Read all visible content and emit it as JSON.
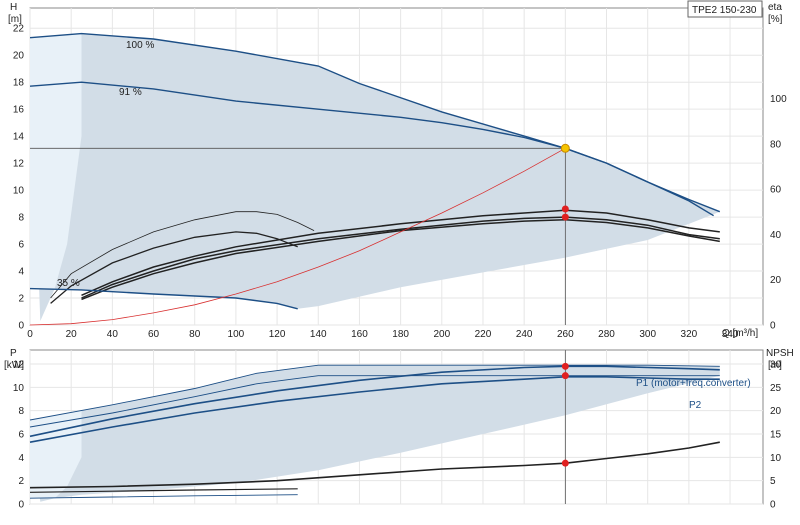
{
  "model_tag": "TPE2 150-230",
  "chart_data": [
    {
      "type": "line",
      "name": "head-efficiency",
      "left_axis": {
        "label": "H",
        "unit": "[m]",
        "ticks": [
          0,
          2,
          4,
          6,
          8,
          10,
          12,
          14,
          16,
          18,
          20,
          22
        ],
        "range": [
          0,
          23.5
        ]
      },
      "right_axis": {
        "label": "eta",
        "unit": "[%]",
        "ticks": [
          0,
          20,
          40,
          60,
          80,
          100
        ],
        "range": [
          0,
          140
        ]
      },
      "x_axis": {
        "label": "Q [m³/h]",
        "ticks": [
          0,
          20,
          40,
          60,
          80,
          100,
          120,
          140,
          160,
          180,
          200,
          220,
          240,
          260,
          280,
          300,
          320,
          340
        ],
        "range": [
          0,
          356
        ]
      },
      "series": [
        {
          "name": "100 %",
          "color": "#1d4f86",
          "points": [
            [
              0,
              21.3
            ],
            [
              25,
              21.6
            ],
            [
              60,
              21.2
            ],
            [
              100,
              20.3
            ],
            [
              140,
              19.2
            ],
            [
              160,
              17.9
            ],
            [
              200,
              15.8
            ],
            [
              240,
              14.0
            ],
            [
              260,
              13.1
            ],
            [
              280,
              12.0
            ],
            [
              300,
              10.6
            ],
            [
              320,
              9.3
            ],
            [
              335,
              8.4
            ]
          ]
        },
        {
          "name": "91 %",
          "color": "#1d4f86",
          "points": [
            [
              0,
              17.7
            ],
            [
              25,
              18.0
            ],
            [
              60,
              17.5
            ],
            [
              100,
              16.6
            ],
            [
              140,
              16.0
            ],
            [
              180,
              15.4
            ],
            [
              200,
              15.0
            ],
            [
              220,
              14.5
            ],
            [
              240,
              13.9
            ],
            [
              260,
              13.1
            ],
            [
              280,
              12.0
            ],
            [
              300,
              10.6
            ],
            [
              320,
              9.2
            ],
            [
              332,
              8.1
            ]
          ]
        },
        {
          "name": "35 %",
          "color": "#1d4f86",
          "points": [
            [
              0,
              2.7
            ],
            [
              25,
              2.6
            ],
            [
              60,
              2.3
            ],
            [
              100,
              2.0
            ],
            [
              120,
              1.6
            ],
            [
              130,
              1.2
            ]
          ]
        },
        {
          "name": "",
          "color": "#d83030",
          "points": [
            [
              0,
              0
            ],
            [
              20,
              0.1
            ],
            [
              40,
              0.4
            ],
            [
              60,
              0.9
            ],
            [
              80,
              1.5
            ],
            [
              100,
              2.3
            ],
            [
              120,
              3.2
            ],
            [
              140,
              4.3
            ],
            [
              160,
              5.5
            ],
            [
              180,
              6.9
            ],
            [
              200,
              8.3
            ],
            [
              220,
              9.8
            ],
            [
              240,
              11.4
            ],
            [
              260,
              13.1
            ]
          ]
        }
      ],
      "efficiency_curves": [
        {
          "color": "#222",
          "width": 0.8,
          "points": [
            [
              10,
              2.0
            ],
            [
              20,
              3.8
            ],
            [
              40,
              5.6
            ],
            [
              60,
              6.9
            ],
            [
              80,
              7.8
            ],
            [
              100,
              8.4
            ],
            [
              110,
              8.4
            ],
            [
              120,
              8.2
            ],
            [
              130,
              7.6
            ],
            [
              138,
              7.0
            ]
          ]
        },
        {
          "color": "#222",
          "width": 1.3,
          "points": [
            [
              10,
              1.6
            ],
            [
              20,
              2.9
            ],
            [
              40,
              4.6
            ],
            [
              60,
              5.7
            ],
            [
              80,
              6.5
            ],
            [
              100,
              6.9
            ],
            [
              110,
              6.8
            ],
            [
              120,
              6.4
            ],
            [
              130,
              5.8
            ]
          ]
        },
        {
          "color": "#222",
          "width": 1.5,
          "points": [
            [
              25,
              2.2
            ],
            [
              40,
              3.2
            ],
            [
              60,
              4.3
            ],
            [
              80,
              5.1
            ],
            [
              100,
              5.8
            ],
            [
              140,
              6.8
            ],
            [
              180,
              7.5
            ],
            [
              220,
              8.1
            ],
            [
              240,
              8.3
            ],
            [
              260,
              8.5
            ],
            [
              280,
              8.3
            ],
            [
              300,
              7.8
            ],
            [
              320,
              7.2
            ],
            [
              335,
              6.9
            ]
          ]
        },
        {
          "color": "#222",
          "width": 1.5,
          "points": [
            [
              25,
              2.0
            ],
            [
              40,
              3.0
            ],
            [
              60,
              4.0
            ],
            [
              80,
              4.9
            ],
            [
              100,
              5.5
            ],
            [
              140,
              6.4
            ],
            [
              180,
              7.1
            ],
            [
              220,
              7.7
            ],
            [
              240,
              7.9
            ],
            [
              260,
              8.0
            ],
            [
              280,
              7.8
            ],
            [
              300,
              7.4
            ],
            [
              320,
              6.7
            ],
            [
              335,
              6.4
            ]
          ]
        },
        {
          "color": "#222",
          "width": 1.5,
          "points": [
            [
              25,
              1.9
            ],
            [
              40,
              2.8
            ],
            [
              60,
              3.8
            ],
            [
              80,
              4.6
            ],
            [
              100,
              5.3
            ],
            [
              140,
              6.2
            ],
            [
              180,
              7.0
            ],
            [
              220,
              7.5
            ],
            [
              240,
              7.7
            ],
            [
              260,
              7.8
            ],
            [
              280,
              7.6
            ],
            [
              300,
              7.2
            ],
            [
              320,
              6.6
            ],
            [
              335,
              6.2
            ]
          ]
        }
      ],
      "operating_point": {
        "q": 260,
        "h": 13.1
      },
      "eta_points": [
        8.6,
        8.0
      ]
    },
    {
      "type": "line",
      "name": "power-npsh",
      "left_axis": {
        "label": "P",
        "unit": "[kW]",
        "ticks": [
          0,
          2,
          4,
          6,
          8,
          10,
          12
        ],
        "range": [
          0,
          13.2
        ]
      },
      "right_axis": {
        "label": "NPSH",
        "unit": "[m]",
        "ticks": [
          0,
          5,
          10,
          15,
          20,
          25,
          30
        ],
        "range": [
          0,
          33
        ]
      },
      "series": [
        {
          "name": "P1 (motor+freq.converter)",
          "color": "#1d4f86",
          "points": [
            [
              0,
              5.8
            ],
            [
              40,
              7.3
            ],
            [
              80,
              8.6
            ],
            [
              120,
              9.7
            ],
            [
              160,
              10.6
            ],
            [
              200,
              11.3
            ],
            [
              240,
              11.7
            ],
            [
              260,
              11.8
            ],
            [
              280,
              11.8
            ],
            [
              300,
              11.7
            ],
            [
              320,
              11.6
            ],
            [
              335,
              11.5
            ]
          ]
        },
        {
          "name": "P2",
          "color": "#1d4f86",
          "points": [
            [
              0,
              5.3
            ],
            [
              40,
              6.6
            ],
            [
              80,
              7.8
            ],
            [
              120,
              8.8
            ],
            [
              160,
              9.6
            ],
            [
              200,
              10.3
            ],
            [
              240,
              10.7
            ],
            [
              260,
              10.9
            ],
            [
              280,
              10.9
            ],
            [
              300,
              10.8
            ],
            [
              320,
              10.7
            ],
            [
              335,
              10.7
            ]
          ]
        },
        {
          "name": "",
          "color": "#1d4f86",
          "points": [
            [
              0,
              7.2
            ],
            [
              40,
              8.5
            ],
            [
              80,
              9.9
            ],
            [
              110,
              11.2
            ],
            [
              140,
              11.9
            ],
            [
              200,
              11.9
            ],
            [
              260,
              11.9
            ],
            [
              300,
              11.9
            ],
            [
              335,
              11.8
            ]
          ]
        },
        {
          "name": "",
          "color": "#1d4f86",
          "points": [
            [
              0,
              6.6
            ],
            [
              40,
              7.8
            ],
            [
              80,
              9.2
            ],
            [
              110,
              10.3
            ],
            [
              140,
              11.0
            ],
            [
              200,
              11.0
            ],
            [
              260,
              11.0
            ],
            [
              300,
              11.0
            ],
            [
              335,
              11.0
            ]
          ]
        },
        {
          "name": "",
          "color": "#1d4f86",
          "points": [
            [
              0,
              0.5
            ],
            [
              40,
              0.6
            ],
            [
              80,
              0.7
            ],
            [
              130,
              0.8
            ]
          ]
        }
      ],
      "npsh": {
        "color": "#222",
        "points": [
          [
            0,
            1.4
          ],
          [
            40,
            1.5
          ],
          [
            80,
            1.7
          ],
          [
            120,
            2.0
          ],
          [
            160,
            2.5
          ],
          [
            200,
            3.0
          ],
          [
            240,
            3.3
          ],
          [
            260,
            3.5
          ],
          [
            280,
            3.9
          ],
          [
            300,
            4.3
          ],
          [
            320,
            4.8
          ],
          [
            335,
            5.3
          ]
        ]
      },
      "npsh_low": {
        "color": "#222",
        "points": [
          [
            0,
            1.0
          ],
          [
            40,
            1.1
          ],
          [
            80,
            1.2
          ],
          [
            130,
            1.3
          ]
        ]
      },
      "op_points": [
        11.8,
        11.0,
        3.5
      ]
    }
  ]
}
